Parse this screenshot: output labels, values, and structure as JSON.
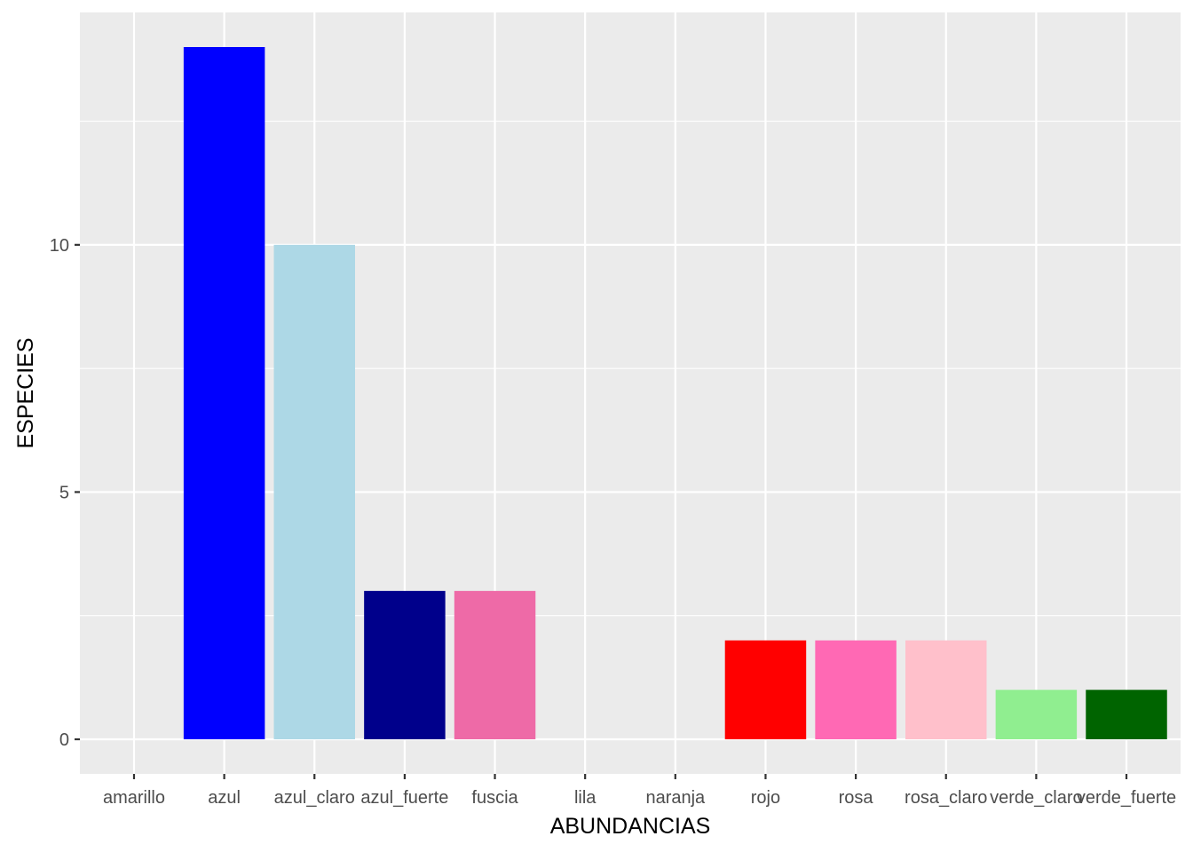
{
  "chart_data": {
    "type": "bar",
    "xlabel": "ABUNDANCIAS",
    "ylabel": "ESPECIES",
    "categories": [
      "amarillo",
      "azul",
      "azul_claro",
      "azul_fuerte",
      "fuscia",
      "lila",
      "naranja",
      "rojo",
      "rosa",
      "rosa_claro",
      "verde_claro",
      "verde_fuerte"
    ],
    "values": [
      0,
      14,
      10,
      3,
      3,
      0,
      0,
      2,
      2,
      2,
      1,
      1
    ],
    "colors": [
      "#FFFF00",
      "#0000FF",
      "#ADD8E6",
      "#00008B",
      "#EE6AA7",
      "#C8A2C8",
      "#FFA500",
      "#FF0000",
      "#FF69B4",
      "#FFC0CB",
      "#90EE90",
      "#006400"
    ],
    "ylim": [
      -0.7,
      14.7
    ],
    "yticks": [
      0,
      5,
      10
    ],
    "grid": true,
    "panel_background": "#EBEBEB",
    "legend": "none"
  }
}
